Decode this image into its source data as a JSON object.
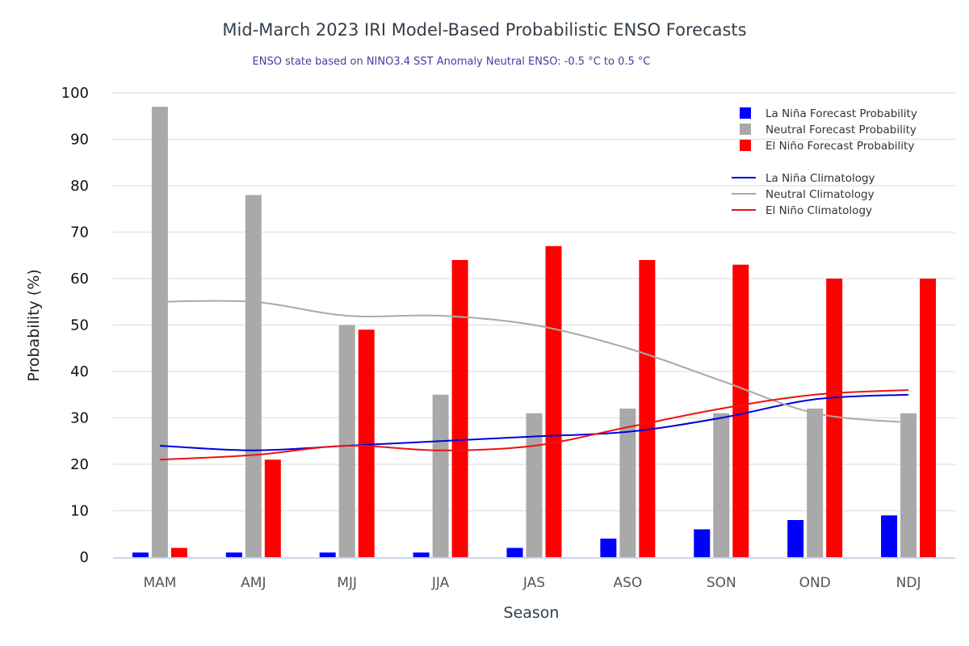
{
  "chart_data": {
    "type": "bar",
    "title": "Mid-March 2023 IRI Model-Based Probabilistic ENSO Forecasts",
    "subtitle": "ENSO state based on NINO3.4 SST Anomaly Neutral ENSO: -0.5 °C to 0.5 °C",
    "xlabel": "Season",
    "ylabel": "Probability (%)",
    "ylim": [
      0,
      100
    ],
    "yticks": [
      0,
      10,
      20,
      30,
      40,
      50,
      60,
      70,
      80,
      90,
      100
    ],
    "grid": true,
    "legend_position": "top-right",
    "categories": [
      "MAM",
      "AMJ",
      "MJJ",
      "JJA",
      "JAS",
      "ASO",
      "SON",
      "OND",
      "NDJ"
    ],
    "series": [
      {
        "name": "La Niña Forecast Probability",
        "kind": "bar",
        "color": "#0000ff",
        "values": [
          1,
          1,
          1,
          1,
          2,
          4,
          6,
          8,
          9
        ]
      },
      {
        "name": "Neutral Forecast Probability",
        "kind": "bar",
        "color": "#a9a9a9",
        "values": [
          97,
          78,
          50,
          35,
          31,
          32,
          31,
          32,
          31
        ]
      },
      {
        "name": "El Niño Forecast Probability",
        "kind": "bar",
        "color": "#ff0000",
        "values": [
          2,
          21,
          49,
          64,
          67,
          64,
          63,
          60,
          60
        ]
      },
      {
        "name": "La Niña Climatology",
        "kind": "line",
        "color": "#0000dd",
        "values": [
          24,
          23,
          24,
          25,
          26,
          27,
          30,
          34,
          35
        ]
      },
      {
        "name": "Neutral Climatology",
        "kind": "line",
        "color": "#a9a9a9",
        "values": [
          55,
          55,
          52,
          52,
          50,
          45,
          38,
          31,
          29
        ]
      },
      {
        "name": "El Niño Climatology",
        "kind": "line",
        "color": "#ee1111",
        "values": [
          21,
          22,
          24,
          23,
          24,
          28,
          32,
          35,
          36
        ]
      }
    ]
  }
}
